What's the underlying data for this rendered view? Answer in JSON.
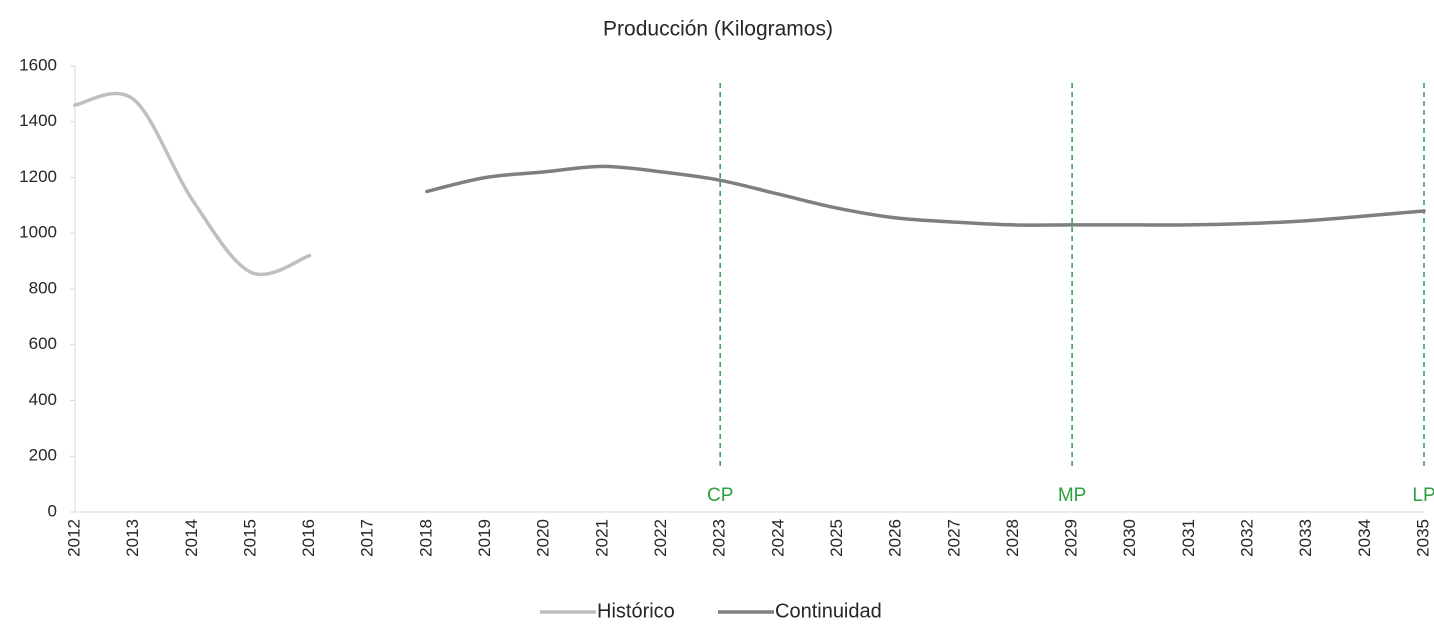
{
  "chart_data": {
    "type": "line",
    "title": "Producción (Kilogramos)",
    "categories": [
      "2012",
      "2013",
      "2014",
      "2015",
      "2016",
      "2017",
      "2018",
      "2019",
      "2020",
      "2021",
      "2022",
      "2023",
      "2024",
      "2025",
      "2026",
      "2027",
      "2028",
      "2029",
      "2030",
      "2031",
      "2032",
      "2033",
      "2034",
      "2035"
    ],
    "series": [
      {
        "name": "Histórico",
        "color": "#bfbfbf",
        "values": [
          1460,
          1480,
          1120,
          860,
          920,
          null,
          null,
          null,
          null,
          null,
          null,
          null,
          null,
          null,
          null,
          null,
          null,
          null,
          null,
          null,
          null,
          null,
          null,
          null
        ]
      },
      {
        "name": "Continuidad",
        "color": "#7f7f7f",
        "values": [
          null,
          null,
          null,
          null,
          null,
          null,
          1150,
          1200,
          1220,
          1240,
          1220,
          1190,
          1140,
          1090,
          1055,
          1040,
          1030,
          1030,
          1030,
          1030,
          1035,
          1045,
          1062,
          1080
        ]
      }
    ],
    "ylim": [
      0,
      1600
    ],
    "yticks": [
      0,
      200,
      400,
      600,
      800,
      1000,
      1200,
      1400,
      1600
    ],
    "smooth": true,
    "legend": "bottom",
    "annotations": [
      {
        "x": "2023",
        "label": "CP",
        "color": "#2e9e3e"
      },
      {
        "x": "2029",
        "label": "MP",
        "color": "#2e9e3e"
      },
      {
        "x": "2035",
        "label": "LP",
        "color": "#2e9e3e"
      }
    ]
  }
}
